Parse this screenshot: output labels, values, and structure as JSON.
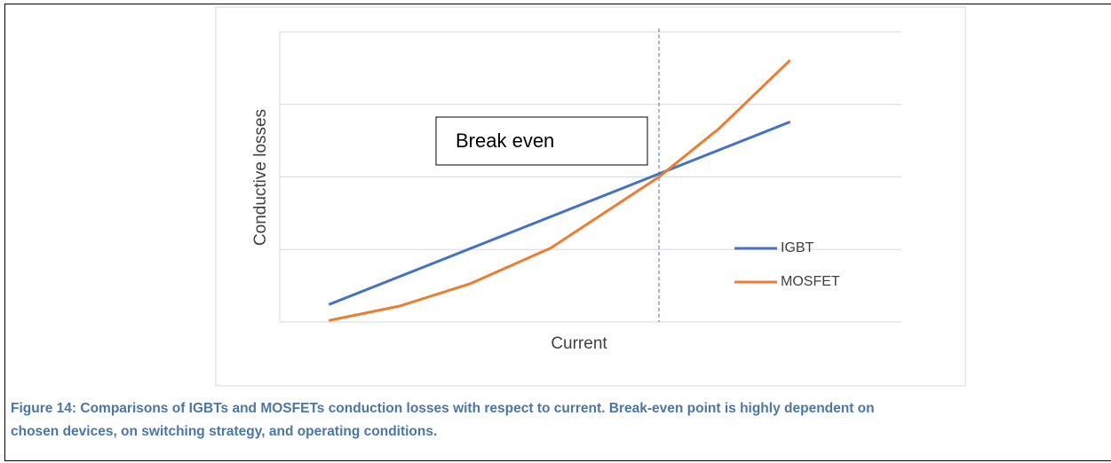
{
  "chart_data": {
    "type": "line",
    "x_label": "Current",
    "y_label": "Conductive losses",
    "annotation": "Break even",
    "break_even_x": 6.1,
    "xlim": [
      0,
      10
    ],
    "ylim": [
      0,
      4
    ],
    "yticks": [
      0,
      1,
      2,
      3,
      4
    ],
    "grid": true,
    "series": [
      {
        "name": "IGBT",
        "color": "#4472c4",
        "x": [
          0.79,
          8.21
        ],
        "values": [
          0.24,
          2.76
        ]
      },
      {
        "name": "MOSFET",
        "color": "#ed7d31",
        "x": [
          0.79,
          1.93,
          3.07,
          4.36,
          6.1,
          7.07,
          8.21
        ],
        "values": [
          0.02,
          0.22,
          0.53,
          1.02,
          2.0,
          2.67,
          3.61
        ]
      }
    ]
  },
  "caption": "Figure 14: Comparisons of IGBTs and MOSFETs conduction losses with respect to current. Break-even point is highly dependent on chosen devices, on switching strategy, and operating conditions."
}
